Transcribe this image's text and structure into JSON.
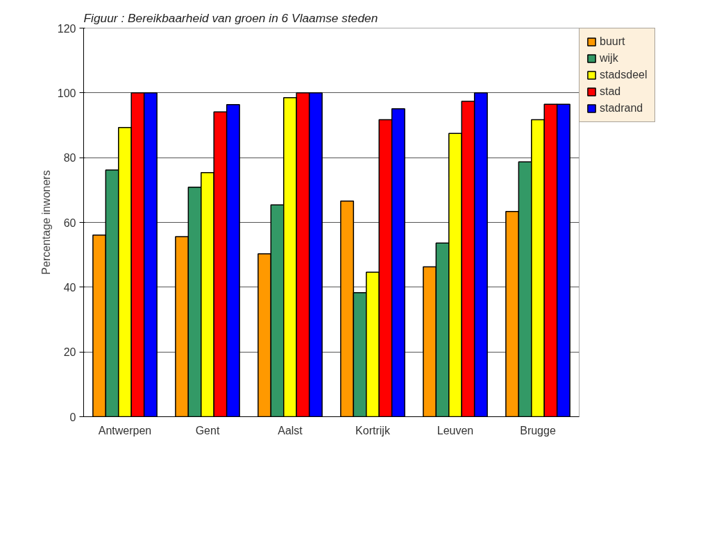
{
  "chart_data": {
    "type": "bar",
    "title": "Figuur : Bereikbaarheid van groen in 6 Vlaamse steden",
    "ylabel": "Percentage inwoners",
    "categories": [
      "Antwerpen",
      "Gent",
      "Aalst",
      "Kortrijk",
      "Leuven",
      "Brugge"
    ],
    "series": [
      {
        "name": "buurt",
        "color": "#ff9900",
        "values": [
          56.1,
          55.6,
          50.3,
          66.6,
          46.3,
          63.4
        ]
      },
      {
        "name": "wijk",
        "color": "#339966",
        "values": [
          76.2,
          70.9,
          65.4,
          38.3,
          53.6,
          78.7
        ]
      },
      {
        "name": "stadsdeel",
        "color": "#ffff00",
        "values": [
          89.3,
          75.4,
          98.5,
          44.6,
          87.5,
          91.7
        ]
      },
      {
        "name": "stad",
        "color": "#ff0000",
        "values": [
          100,
          94.1,
          100,
          91.7,
          97.4,
          96.5
        ]
      },
      {
        "name": "stadrand",
        "color": "#0000ff",
        "values": [
          100,
          96.4,
          100,
          95.1,
          100,
          96.5
        ]
      }
    ],
    "ylim": [
      0,
      120
    ],
    "yticks": [
      0,
      20,
      40,
      60,
      80,
      100,
      120
    ],
    "grid": "y",
    "legend": "right"
  }
}
